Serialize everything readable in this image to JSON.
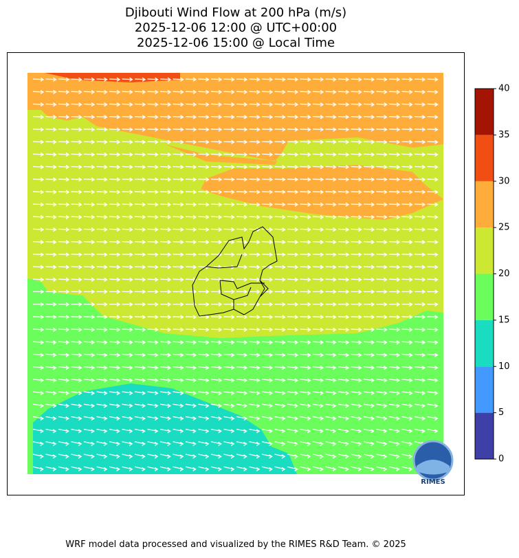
{
  "title": [
    "Djibouti Wind Flow at 200 hPa (m/s)",
    "2025-12-06 12:00 @ UTC+00:00",
    "2025-12-06 15:00 @ Local Time"
  ],
  "colorbar": {
    "levels": [
      0,
      5,
      10,
      15,
      20,
      25,
      30,
      35,
      40
    ],
    "colors": [
      "#3f3fa8",
      "#4499ff",
      "#1adcc0",
      "#6afd5c",
      "#cde832",
      "#ffad3a",
      "#f04e12",
      "#a31502"
    ]
  },
  "logo": "RIMES",
  "footer": "WRF model data processed and visualized by the RIMES R&D Team. © 2025"
}
